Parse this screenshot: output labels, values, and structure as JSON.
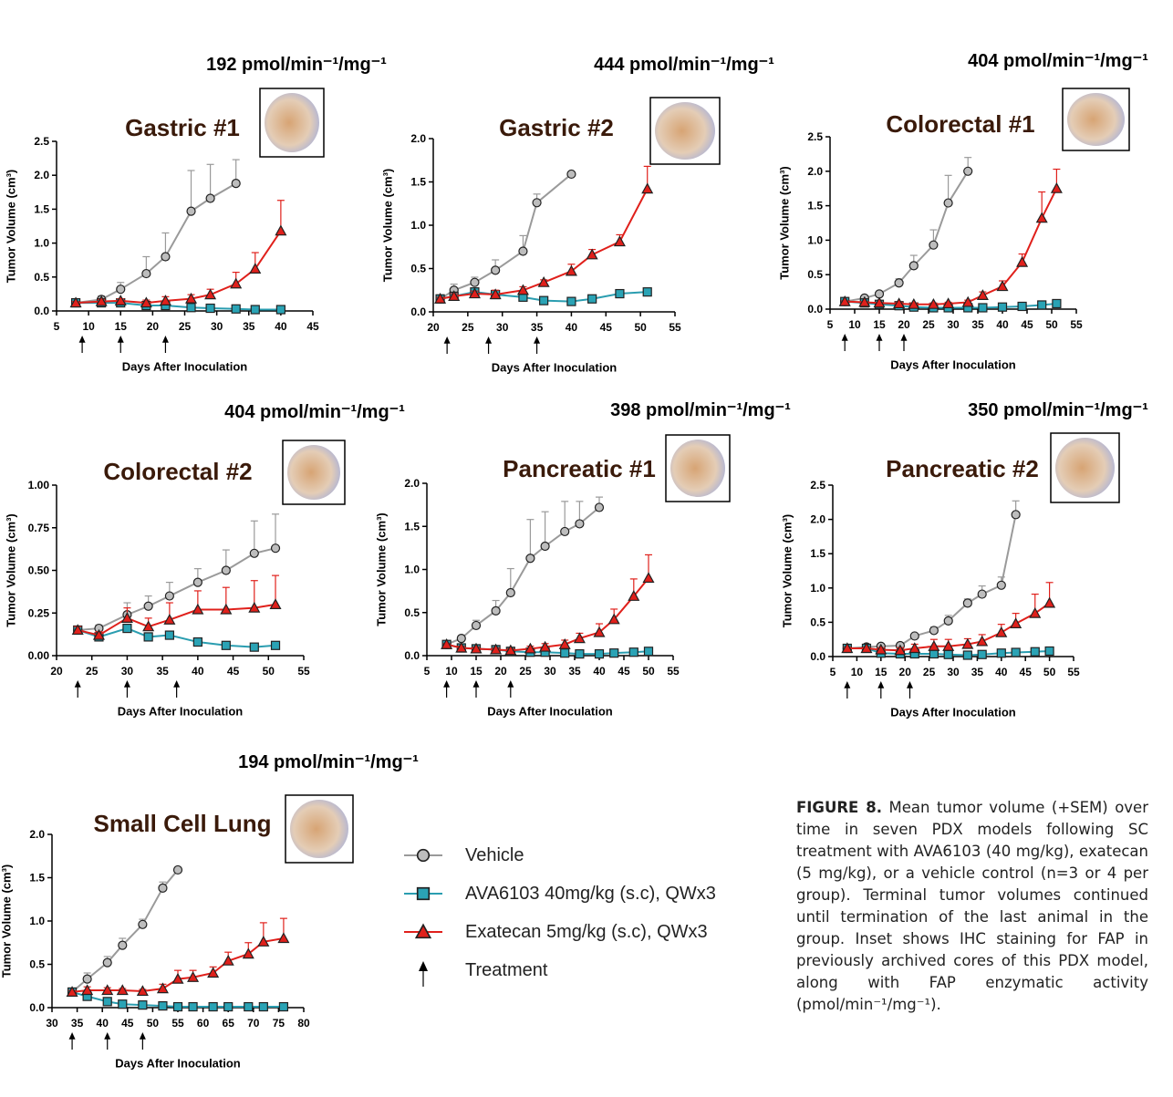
{
  "legend": [
    {
      "name": "Vehicle",
      "color": "#9a9a9a",
      "fill": "#bdbdbd",
      "marker": "circle"
    },
    {
      "name": "AVA6103 40mg/kg (s.c), QWx3",
      "color": "#2a9db0",
      "fill": "#2aa3b5",
      "marker": "square"
    },
    {
      "name": "Exatecan 5mg/kg (s.c), QWx3",
      "color": "#e0201b",
      "fill": "#e0201b",
      "marker": "triangle"
    },
    {
      "name": "Treatment",
      "color": "#000000",
      "marker": "arrow"
    }
  ],
  "chart_data": [
    {
      "type": "line",
      "title": "Gastric #1",
      "activity": "192 pmol/min⁻¹/mg⁻¹",
      "xlabel": "Days After Inoculation",
      "ylabel": "Tumor Volume (cm³)",
      "xlim": [
        5,
        45
      ],
      "xticks": [
        5,
        10,
        15,
        20,
        25,
        30,
        35,
        40,
        45
      ],
      "ylim": [
        0,
        2.5
      ],
      "yticks": [
        {
          "value": 0,
          "label": "0.0"
        },
        0.5,
        {
          "value": 1,
          "label": "1.0"
        },
        1.5,
        {
          "value": 2,
          "label": "2.0"
        },
        2.5
      ],
      "treatment_days": [
        9,
        15,
        22
      ],
      "series": [
        {
          "x": [
            8,
            12,
            15,
            19,
            22,
            26,
            29,
            33
          ],
          "values": [
            0.12,
            0.17,
            0.32,
            0.55,
            0.8,
            1.47,
            1.66,
            1.88
          ],
          "errors": [
            0.02,
            0.05,
            0.1,
            0.25,
            0.35,
            0.6,
            0.5,
            0.35
          ]
        },
        {
          "x": [
            8,
            12,
            15,
            19,
            22,
            26,
            29,
            33,
            36,
            40
          ],
          "values": [
            0.12,
            0.12,
            0.12,
            0.08,
            0.08,
            0.05,
            0.04,
            0.03,
            0.02,
            0.02
          ]
        },
        {
          "x": [
            8,
            12,
            15,
            19,
            22,
            26,
            29,
            33,
            36,
            40
          ],
          "values": [
            0.12,
            0.14,
            0.15,
            0.12,
            0.15,
            0.18,
            0.24,
            0.4,
            0.62,
            1.18
          ],
          "errors": [
            0.02,
            0.03,
            0.03,
            0.04,
            0.06,
            0.06,
            0.08,
            0.17,
            0.24,
            0.45
          ]
        }
      ]
    },
    {
      "type": "line",
      "title": "Gastric #2",
      "activity": "444 pmol/min⁻¹/mg⁻¹",
      "xlabel": "Days After Inoculation",
      "ylabel": "Tumor Volume (cm³)",
      "xlim": [
        20,
        55
      ],
      "xticks": [
        20,
        25,
        30,
        35,
        40,
        45,
        50,
        55
      ],
      "ylim": [
        0,
        2
      ],
      "yticks": [
        {
          "value": 0,
          "label": "0.0"
        },
        0.5,
        {
          "value": 1,
          "label": "1.0"
        },
        1.5,
        {
          "value": 2,
          "label": "2.0"
        }
      ],
      "treatment_days": [
        22,
        28,
        35
      ],
      "series": [
        {
          "x": [
            21,
            23,
            26,
            29,
            33,
            35,
            40
          ],
          "values": [
            0.15,
            0.25,
            0.34,
            0.48,
            0.7,
            1.26,
            1.59
          ],
          "errors": [
            0.02,
            0.07,
            0.06,
            0.12,
            0.18,
            0.1,
            0.02
          ]
        },
        {
          "x": [
            21,
            23,
            26,
            29,
            33,
            36,
            40,
            43,
            47,
            51
          ],
          "values": [
            0.15,
            0.18,
            0.23,
            0.2,
            0.17,
            0.13,
            0.12,
            0.15,
            0.21,
            0.23
          ]
        },
        {
          "x": [
            21,
            23,
            26,
            29,
            33,
            36,
            40,
            43,
            47,
            51
          ],
          "values": [
            0.15,
            0.18,
            0.21,
            0.2,
            0.25,
            0.34,
            0.47,
            0.66,
            0.81,
            1.42
          ],
          "errors": [
            0.02,
            0.03,
            0.03,
            0.05,
            0.04,
            0.03,
            0.08,
            0.06,
            0.08,
            0.26
          ]
        }
      ]
    },
    {
      "type": "line",
      "title": "Colorectal #1",
      "activity": "404 pmol/min⁻¹/mg⁻¹",
      "xlabel": "Days After Inoculation",
      "ylabel": "Tumor Volume (cm³)",
      "xlim": [
        5,
        55
      ],
      "xticks": [
        5,
        10,
        15,
        20,
        25,
        30,
        35,
        40,
        45,
        50,
        55
      ],
      "ylim": [
        0,
        2.5
      ],
      "yticks": [
        {
          "value": 0,
          "label": "0.0"
        },
        0.5,
        {
          "value": 1,
          "label": "1.0"
        },
        1.5,
        {
          "value": 2,
          "label": "2.0"
        },
        2.5
      ],
      "treatment_days": [
        8,
        15,
        20
      ],
      "series": [
        {
          "x": [
            8,
            12,
            15,
            19,
            22,
            26,
            29,
            33
          ],
          "values": [
            0.11,
            0.16,
            0.22,
            0.38,
            0.63,
            0.93,
            1.54,
            2.0
          ],
          "errors": [
            0.01,
            0.02,
            0.03,
            0.06,
            0.15,
            0.22,
            0.4,
            0.2
          ]
        },
        {
          "x": [
            8,
            12,
            15,
            19,
            22,
            26,
            29,
            33,
            36,
            40,
            44,
            48,
            51
          ],
          "values": [
            0.11,
            0.09,
            0.07,
            0.05,
            0.03,
            0.02,
            0.02,
            0.02,
            0.02,
            0.03,
            0.04,
            0.06,
            0.08
          ]
        },
        {
          "x": [
            8,
            12,
            15,
            19,
            22,
            26,
            29,
            33,
            36,
            40,
            44,
            48,
            51
          ],
          "values": [
            0.11,
            0.1,
            0.09,
            0.08,
            0.07,
            0.07,
            0.08,
            0.1,
            0.2,
            0.33,
            0.68,
            1.32,
            1.75
          ],
          "errors": [
            0.01,
            0.01,
            0.01,
            0.02,
            0.02,
            0.02,
            0.02,
            0.03,
            0.05,
            0.08,
            0.12,
            0.38,
            0.28
          ]
        }
      ]
    },
    {
      "type": "line",
      "title": "Colorectal #2",
      "activity": "404 pmol/min⁻¹/mg⁻¹",
      "xlabel": "Days After Inoculation",
      "ylabel": "Tumor Volume (cm³)",
      "xlim": [
        20,
        55
      ],
      "xticks": [
        20,
        25,
        30,
        35,
        40,
        45,
        50,
        55
      ],
      "ylim": [
        0,
        1
      ],
      "yticks": [
        {
          "value": 0,
          "label": "0.00"
        },
        0.25,
        {
          "value": 0.5,
          "label": "0.50"
        },
        0.75,
        {
          "value": 1,
          "label": "1.00"
        }
      ],
      "treatment_days": [
        23,
        30,
        37
      ],
      "series": [
        {
          "x": [
            23,
            26,
            30,
            33,
            36,
            40,
            44,
            48,
            51
          ],
          "values": [
            0.15,
            0.16,
            0.24,
            0.29,
            0.35,
            0.43,
            0.5,
            0.6,
            0.63
          ],
          "errors": [
            0.02,
            0.02,
            0.07,
            0.06,
            0.08,
            0.08,
            0.12,
            0.19,
            0.2
          ]
        },
        {
          "x": [
            23,
            26,
            30,
            33,
            36,
            40,
            44,
            48,
            51
          ],
          "values": [
            0.15,
            0.11,
            0.16,
            0.11,
            0.12,
            0.08,
            0.06,
            0.05,
            0.06
          ]
        },
        {
          "x": [
            23,
            26,
            30,
            33,
            36,
            40,
            44,
            48,
            51
          ],
          "values": [
            0.15,
            0.12,
            0.22,
            0.17,
            0.21,
            0.27,
            0.27,
            0.28,
            0.3
          ],
          "errors": [
            0.02,
            0.02,
            0.06,
            0.05,
            0.1,
            0.11,
            0.13,
            0.16,
            0.17
          ]
        }
      ]
    },
    {
      "type": "line",
      "title": "Pancreatic #1",
      "activity": "398 pmol/min⁻¹/mg⁻¹",
      "xlabel": "Days After Inoculation",
      "ylabel": "Tumor Volume (cm³)",
      "xlim": [
        5,
        55
      ],
      "xticks": [
        5,
        10,
        15,
        20,
        25,
        30,
        35,
        40,
        45,
        50,
        55
      ],
      "ylim": [
        0,
        2
      ],
      "yticks": [
        {
          "value": 0,
          "label": "0.0"
        },
        0.5,
        {
          "value": 1,
          "label": "1.0"
        },
        1.5,
        {
          "value": 2,
          "label": "2.0"
        }
      ],
      "treatment_days": [
        9,
        15,
        22
      ],
      "series": [
        {
          "x": [
            9,
            12,
            15,
            19,
            22,
            26,
            29,
            33,
            36,
            40
          ],
          "values": [
            0.13,
            0.2,
            0.35,
            0.52,
            0.73,
            1.13,
            1.27,
            1.44,
            1.53,
            1.72
          ],
          "errors": [
            0.01,
            0.03,
            0.06,
            0.12,
            0.28,
            0.45,
            0.4,
            0.35,
            0.26,
            0.12
          ]
        },
        {
          "x": [
            9,
            12,
            15,
            19,
            22,
            26,
            29,
            33,
            36,
            40,
            43,
            47,
            50
          ],
          "values": [
            0.13,
            0.09,
            0.08,
            0.07,
            0.05,
            0.04,
            0.04,
            0.03,
            0.02,
            0.02,
            0.03,
            0.04,
            0.05
          ]
        },
        {
          "x": [
            9,
            12,
            15,
            19,
            22,
            26,
            29,
            33,
            36,
            40,
            43,
            47,
            50
          ],
          "values": [
            0.13,
            0.09,
            0.08,
            0.07,
            0.06,
            0.08,
            0.1,
            0.13,
            0.2,
            0.27,
            0.42,
            0.69,
            0.9
          ],
          "errors": [
            0.01,
            0.02,
            0.02,
            0.02,
            0.02,
            0.03,
            0.04,
            0.05,
            0.06,
            0.1,
            0.12,
            0.2,
            0.27
          ]
        }
      ]
    },
    {
      "type": "line",
      "title": "Pancreatic #2",
      "activity": "350 pmol/min⁻¹/mg⁻¹",
      "xlabel": "Days After Inoculation",
      "ylabel": "Tumor Volume (cm³)",
      "xlim": [
        5,
        55
      ],
      "xticks": [
        5,
        10,
        15,
        20,
        25,
        30,
        35,
        40,
        45,
        50,
        55
      ],
      "ylim": [
        0,
        2.5
      ],
      "yticks": [
        {
          "value": 0,
          "label": "0.0"
        },
        0.5,
        {
          "value": 1,
          "label": "1.0"
        },
        1.5,
        {
          "value": 2,
          "label": "2.0"
        },
        2.5
      ],
      "treatment_days": [
        8,
        15,
        21
      ],
      "series": [
        {
          "x": [
            8,
            12,
            15,
            19,
            22,
            26,
            29,
            33,
            36,
            40,
            43
          ],
          "values": [
            0.12,
            0.14,
            0.15,
            0.16,
            0.3,
            0.38,
            0.52,
            0.78,
            0.91,
            1.04,
            2.07
          ],
          "errors": [
            0.02,
            0.02,
            0.02,
            0.02,
            0.03,
            0.05,
            0.08,
            0.06,
            0.12,
            0.12,
            0.2
          ]
        },
        {
          "x": [
            8,
            12,
            15,
            19,
            22,
            26,
            29,
            33,
            36,
            40,
            43,
            47,
            50
          ],
          "values": [
            0.12,
            0.12,
            0.05,
            0.04,
            0.04,
            0.04,
            0.03,
            0.02,
            0.03,
            0.05,
            0.06,
            0.07,
            0.08
          ]
        },
        {
          "x": [
            8,
            12,
            15,
            19,
            22,
            26,
            29,
            33,
            36,
            40,
            43,
            47,
            50
          ],
          "values": [
            0.12,
            0.12,
            0.1,
            0.09,
            0.12,
            0.15,
            0.15,
            0.18,
            0.22,
            0.35,
            0.48,
            0.63,
            0.78
          ],
          "errors": [
            0.02,
            0.02,
            0.03,
            0.04,
            0.06,
            0.1,
            0.1,
            0.08,
            0.1,
            0.12,
            0.15,
            0.28,
            0.3
          ]
        }
      ]
    },
    {
      "type": "line",
      "title": "Small Cell Lung",
      "activity": "194 pmol/min⁻¹/mg⁻¹",
      "xlabel": "Days After Inoculation",
      "ylabel": "Tumor Volume (cm³)",
      "xlim": [
        30,
        80
      ],
      "xticks": [
        30,
        35,
        40,
        45,
        50,
        55,
        60,
        65,
        70,
        75,
        80
      ],
      "ylim": [
        0,
        2
      ],
      "yticks": [
        {
          "value": 0,
          "label": "0.0"
        },
        0.5,
        {
          "value": 1,
          "label": "1.0"
        },
        1.5,
        {
          "value": 2,
          "label": "2.0"
        }
      ],
      "treatment_days": [
        34,
        41,
        48
      ],
      "series": [
        {
          "x": [
            34,
            37,
            41,
            44,
            48,
            52,
            55
          ],
          "values": [
            0.18,
            0.33,
            0.52,
            0.72,
            0.96,
            1.38,
            1.59
          ],
          "errors": [
            0.02,
            0.07,
            0.07,
            0.08,
            0.06,
            0.07,
            0.02
          ]
        },
        {
          "x": [
            34,
            37,
            41,
            44,
            48,
            52,
            55,
            58,
            62,
            65,
            69,
            72,
            76
          ],
          "values": [
            0.18,
            0.13,
            0.07,
            0.04,
            0.03,
            0.02,
            0.01,
            0.01,
            0.01,
            0.01,
            0.01,
            0.01,
            0.01
          ]
        },
        {
          "x": [
            34,
            37,
            41,
            44,
            48,
            52,
            55,
            58,
            62,
            65,
            69,
            72,
            76
          ],
          "values": [
            0.18,
            0.2,
            0.2,
            0.2,
            0.19,
            0.22,
            0.33,
            0.35,
            0.4,
            0.54,
            0.62,
            0.76,
            0.8
          ],
          "errors": [
            0.02,
            0.04,
            0.03,
            0.02,
            0.02,
            0.05,
            0.1,
            0.08,
            0.07,
            0.1,
            0.13,
            0.22,
            0.23
          ]
        }
      ]
    }
  ],
  "caption": {
    "label": "FIGURE 8.",
    "text": "Mean tumor volume (+SEM) over time in seven PDX models following SC treatment with AVA6103 (40 mg/kg), exatecan (5 mg/kg), or a vehicle control (n=3 or 4 per group). Terminal tumor volumes continued until termination of the last animal in the group. Inset shows IHC staining for FAP in previously archived cores of this PDX model, along with FAP enzymatic activity (pmol/min⁻¹/mg⁻¹)."
  }
}
